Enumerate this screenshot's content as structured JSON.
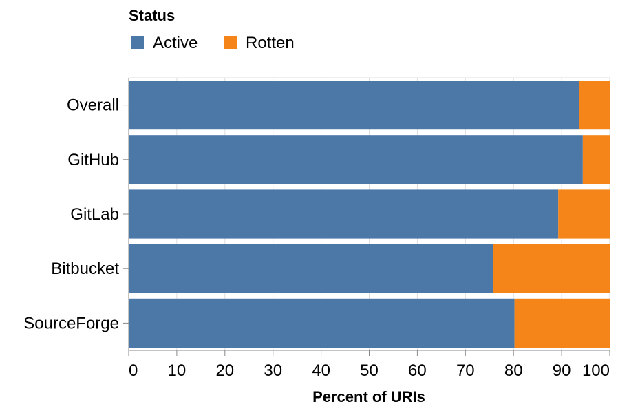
{
  "chart_data": {
    "type": "bar",
    "orientation": "horizontal",
    "stacked": true,
    "categories": [
      "Overall",
      "GitHub",
      "GitLab",
      "Bitbucket",
      "SourceForge"
    ],
    "series": [
      {
        "name": "Active",
        "color": "#4c78a8",
        "values": [
          93.6,
          94.4,
          89.3,
          75.8,
          80.2
        ]
      },
      {
        "name": "Rotten",
        "color": "#f58518",
        "values": [
          6.4,
          5.6,
          10.7,
          24.2,
          19.8
        ]
      }
    ],
    "legend_title": "Status",
    "legend_position": "top-left",
    "xlabel": "Percent of URIs",
    "ylabel": "",
    "xlim": [
      0,
      100
    ],
    "xticks": [
      0,
      10,
      20,
      30,
      40,
      50,
      60,
      70,
      80,
      90,
      100
    ],
    "grid": true
  }
}
